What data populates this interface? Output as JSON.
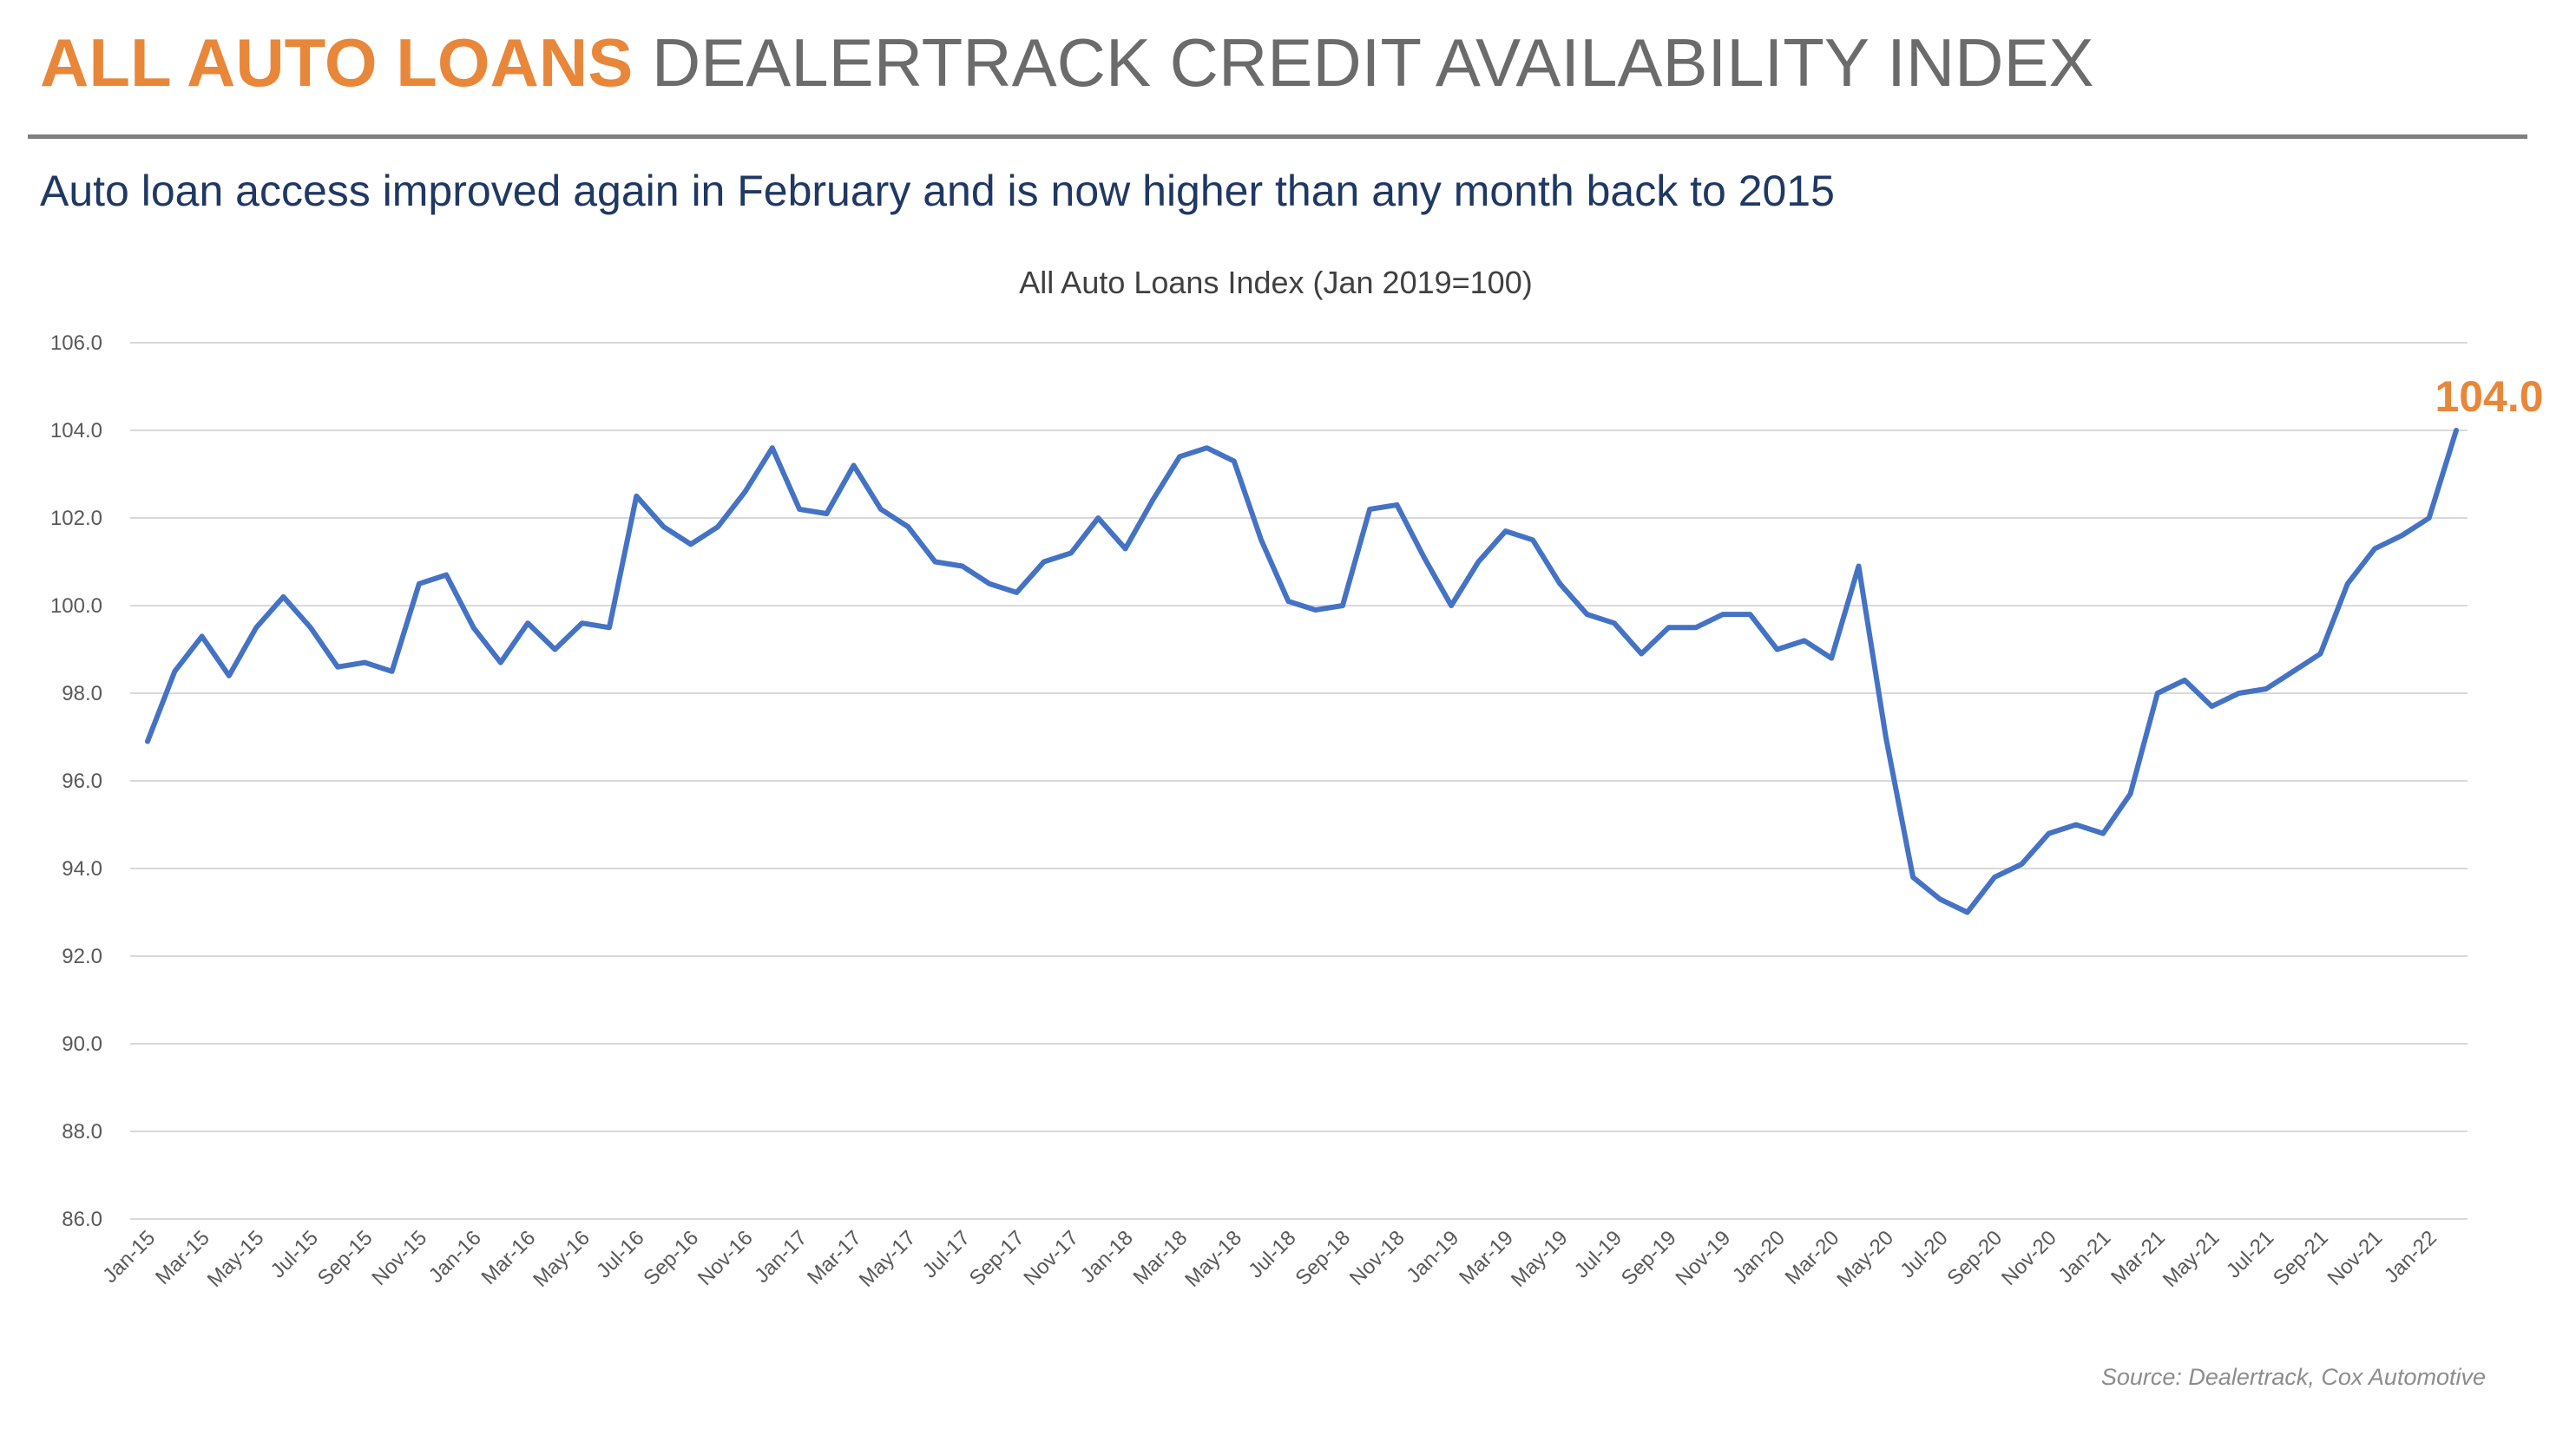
{
  "header": {
    "title_accent": "ALL AUTO LOANS",
    "title_main": "DEALERTRACK CREDIT AVAILABILITY INDEX",
    "subtitle": "Auto loan access improved again in February and is now higher than any month back to 2015"
  },
  "footer": {
    "source": "Source: Dealertrack, Cox Automotive"
  },
  "colors": {
    "accent": "#E8873A",
    "line": "#4472C4",
    "subtitle": "#1F3864"
  },
  "chart_data": {
    "type": "line",
    "title": "All Auto Loans Index (Jan 2019=100)",
    "xlabel": "",
    "ylabel": "",
    "ylim": [
      86.0,
      106.0
    ],
    "yticks": [
      "86.0",
      "88.0",
      "90.0",
      "92.0",
      "94.0",
      "96.0",
      "98.0",
      "100.0",
      "102.0",
      "104.0",
      "106.0"
    ],
    "grid": true,
    "legend": "none",
    "x": [
      "Jan-15",
      "Feb-15",
      "Mar-15",
      "Apr-15",
      "May-15",
      "Jun-15",
      "Jul-15",
      "Aug-15",
      "Sep-15",
      "Oct-15",
      "Nov-15",
      "Dec-15",
      "Jan-16",
      "Feb-16",
      "Mar-16",
      "Apr-16",
      "May-16",
      "Jun-16",
      "Jul-16",
      "Aug-16",
      "Sep-16",
      "Oct-16",
      "Nov-16",
      "Dec-16",
      "Jan-17",
      "Feb-17",
      "Mar-17",
      "Apr-17",
      "May-17",
      "Jun-17",
      "Jul-17",
      "Aug-17",
      "Sep-17",
      "Oct-17",
      "Nov-17",
      "Dec-17",
      "Jan-18",
      "Feb-18",
      "Mar-18",
      "Apr-18",
      "May-18",
      "Jun-18",
      "Jul-18",
      "Aug-18",
      "Sep-18",
      "Oct-18",
      "Nov-18",
      "Dec-18",
      "Jan-19",
      "Feb-19",
      "Mar-19",
      "Apr-19",
      "May-19",
      "Jun-19",
      "Jul-19",
      "Aug-19",
      "Sep-19",
      "Oct-19",
      "Nov-19",
      "Dec-19",
      "Jan-20",
      "Feb-20",
      "Mar-20",
      "Apr-20",
      "May-20",
      "Jun-20",
      "Jul-20",
      "Aug-20",
      "Sep-20",
      "Oct-20",
      "Nov-20",
      "Dec-20",
      "Jan-21",
      "Feb-21",
      "Mar-21",
      "Apr-21",
      "May-21",
      "Jun-21",
      "Jul-21",
      "Aug-21",
      "Sep-21",
      "Oct-21",
      "Nov-21",
      "Dec-21",
      "Jan-22",
      "Feb-22"
    ],
    "series": [
      {
        "values": [
          96.9,
          98.5,
          99.3,
          98.4,
          99.5,
          100.2,
          99.5,
          98.6,
          98.7,
          98.5,
          100.5,
          100.7,
          99.5,
          98.7,
          99.6,
          99.0,
          99.6,
          99.5,
          102.5,
          101.8,
          101.4,
          101.8,
          102.6,
          103.6,
          102.2,
          102.1,
          103.2,
          102.2,
          101.8,
          101.0,
          100.9,
          100.5,
          100.3,
          101.0,
          101.2,
          102.0,
          101.3,
          102.4,
          103.4,
          103.6,
          103.3,
          101.5,
          100.1,
          99.9,
          100.0,
          102.2,
          102.3,
          101.1,
          100.0,
          101.0,
          101.7,
          101.5,
          100.5,
          99.8,
          99.6,
          98.9,
          99.5,
          99.5,
          99.8,
          99.8,
          99.0,
          99.2,
          98.8,
          100.9,
          97.0,
          93.8,
          93.3,
          93.0,
          93.8,
          94.1,
          94.8,
          95.0,
          94.8,
          95.7,
          98.0,
          98.3,
          97.7,
          98.0,
          98.1,
          98.5,
          98.9,
          100.5,
          101.3,
          101.6,
          102.0,
          104.0
        ]
      }
    ],
    "annotations": [
      {
        "x": "Feb-22",
        "value": 104.0,
        "label": "104.0"
      }
    ]
  }
}
